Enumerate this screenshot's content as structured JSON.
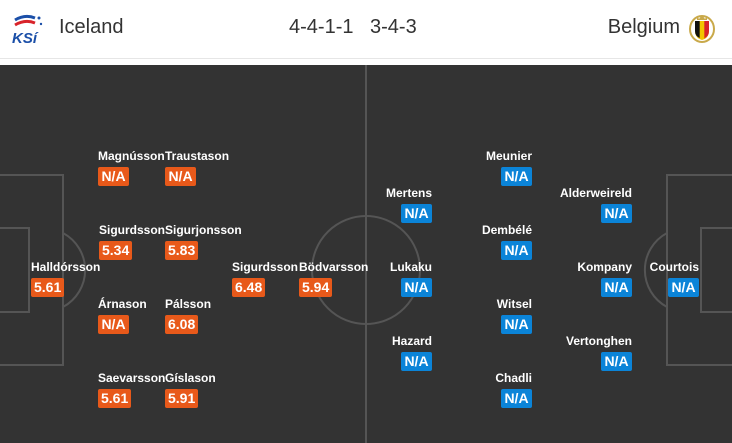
{
  "header": {
    "home": {
      "name": "Iceland",
      "formation": "4-4-1-1",
      "logo": "KSI"
    },
    "away": {
      "name": "Belgium",
      "formation": "3-4-3",
      "logo": "belgium-crest"
    }
  },
  "colors": {
    "home_badge": "#e8591a",
    "away_badge": "#0b84d8",
    "pitch": "#333333"
  },
  "home_players": [
    {
      "name": "Magnússon",
      "rating": "N/A"
    },
    {
      "name": "Traustason",
      "rating": "N/A"
    },
    {
      "name": "Sigurdsson",
      "rating": "5.34"
    },
    {
      "name": "Sigurjonsson",
      "rating": "5.83"
    },
    {
      "name": "Halldórsson",
      "rating": "5.61"
    },
    {
      "name": "Sigurdsson",
      "rating": "6.48"
    },
    {
      "name": "Bödvarsson",
      "rating": "5.94"
    },
    {
      "name": "Árnason",
      "rating": "N/A"
    },
    {
      "name": "Pálsson",
      "rating": "6.08"
    },
    {
      "name": "Saevarsson",
      "rating": "5.61"
    },
    {
      "name": "Gíslason",
      "rating": "5.91"
    }
  ],
  "away_players": [
    {
      "name": "Meunier",
      "rating": "N/A"
    },
    {
      "name": "Mertens",
      "rating": "N/A"
    },
    {
      "name": "Alderweireld",
      "rating": "N/A"
    },
    {
      "name": "Dembélé",
      "rating": "N/A"
    },
    {
      "name": "Lukaku",
      "rating": "N/A"
    },
    {
      "name": "Kompany",
      "rating": "N/A"
    },
    {
      "name": "Courtois",
      "rating": "N/A"
    },
    {
      "name": "Witsel",
      "rating": "N/A"
    },
    {
      "name": "Hazard",
      "rating": "N/A"
    },
    {
      "name": "Vertonghen",
      "rating": "N/A"
    },
    {
      "name": "Chadli",
      "rating": "N/A"
    }
  ]
}
